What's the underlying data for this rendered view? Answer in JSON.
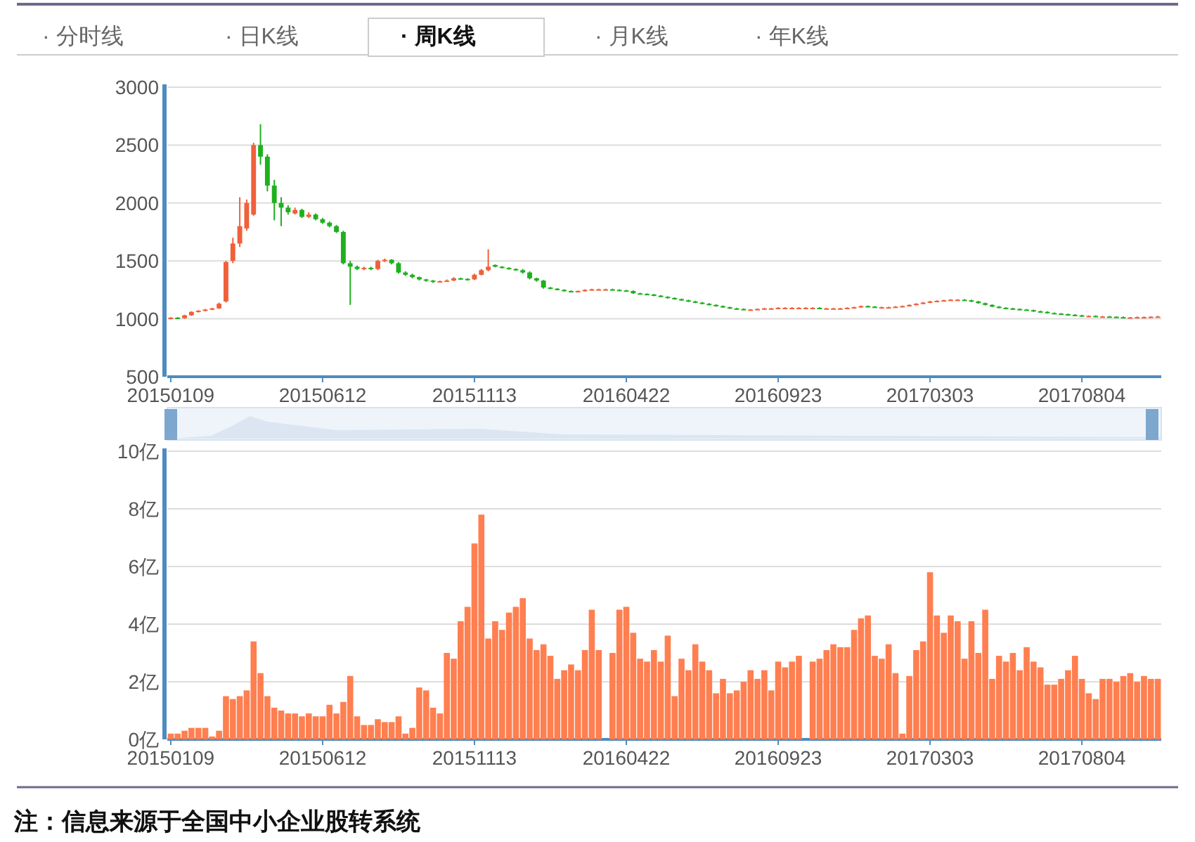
{
  "chart_data": [
    {
      "type": "other",
      "annotations": [
        "· 分时线",
        "· 日K线",
        "· 周K线",
        "· 月K线",
        "· 年K线"
      ]
    },
    {
      "type": "candlestick",
      "categories": [
        "20150109",
        null,
        null,
        null,
        null,
        null,
        null,
        null,
        null,
        null,
        null,
        null,
        null,
        null,
        null,
        null,
        null,
        null,
        null,
        null,
        null,
        null,
        "20150612",
        null,
        null,
        null,
        null,
        null,
        null,
        null,
        null,
        null,
        null,
        null,
        null,
        null,
        null,
        null,
        null,
        null,
        null,
        null,
        null,
        null,
        "20151113",
        null,
        null,
        null,
        null,
        null,
        null,
        null,
        null,
        null,
        null,
        null,
        null,
        null,
        null,
        null,
        null,
        null,
        null,
        null,
        null,
        null,
        "20160422",
        null,
        null,
        null,
        null,
        null,
        null,
        null,
        null,
        null,
        null,
        null,
        null,
        null,
        null,
        null,
        null,
        null,
        null,
        null,
        null,
        null,
        "20160923",
        null,
        null,
        null,
        null,
        null,
        null,
        null,
        null,
        null,
        null,
        null,
        null,
        null,
        null,
        null,
        null,
        null,
        null,
        null,
        null,
        null,
        "20170303",
        null,
        null,
        null,
        null,
        null,
        null,
        null,
        null,
        null,
        null,
        null,
        null,
        null,
        null,
        null,
        null,
        null,
        null,
        null,
        null,
        null,
        "20170804",
        null,
        null,
        null,
        null,
        null,
        null,
        null,
        null,
        null,
        null,
        null
      ],
      "ohlc": [
        [
          1000,
          1015,
          995,
          1010
        ],
        [
          1010,
          1015,
          1000,
          1005
        ],
        [
          1005,
          1035,
          1000,
          1030
        ],
        [
          1030,
          1065,
          1025,
          1060
        ],
        [
          1060,
          1075,
          1055,
          1070
        ],
        [
          1070,
          1085,
          1065,
          1080
        ],
        [
          1080,
          1095,
          1075,
          1090
        ],
        [
          1090,
          1140,
          1085,
          1130
        ],
        [
          1150,
          1500,
          1140,
          1490
        ],
        [
          1500,
          1700,
          1480,
          1650
        ],
        [
          1650,
          2050,
          1620,
          1800
        ],
        [
          1780,
          2030,
          1760,
          2000
        ],
        [
          1900,
          2520,
          1890,
          2500
        ],
        [
          2500,
          2680,
          2330,
          2400
        ],
        [
          2400,
          2420,
          2100,
          2150
        ],
        [
          2150,
          2200,
          1850,
          2000
        ],
        [
          2000,
          2050,
          1800,
          1960
        ],
        [
          1960,
          1980,
          1900,
          1920
        ],
        [
          1910,
          1960,
          1900,
          1940
        ],
        [
          1940,
          1950,
          1870,
          1880
        ],
        [
          1880,
          1920,
          1870,
          1900
        ],
        [
          1900,
          1910,
          1850,
          1860
        ],
        [
          1860,
          1870,
          1820,
          1830
        ],
        [
          1830,
          1840,
          1790,
          1800
        ],
        [
          1800,
          1810,
          1740,
          1750
        ],
        [
          1750,
          1760,
          1470,
          1480
        ],
        [
          1480,
          1500,
          1120,
          1450
        ],
        [
          1450,
          1460,
          1420,
          1430
        ],
        [
          1430,
          1450,
          1420,
          1440
        ],
        [
          1440,
          1450,
          1420,
          1430
        ],
        [
          1430,
          1510,
          1420,
          1500
        ],
        [
          1500,
          1520,
          1490,
          1510
        ],
        [
          1510,
          1515,
          1470,
          1480
        ],
        [
          1480,
          1490,
          1390,
          1400
        ],
        [
          1400,
          1410,
          1370,
          1380
        ],
        [
          1380,
          1390,
          1350,
          1360
        ],
        [
          1360,
          1365,
          1330,
          1340
        ],
        [
          1340,
          1345,
          1320,
          1330
        ],
        [
          1330,
          1335,
          1310,
          1320
        ],
        [
          1320,
          1330,
          1315,
          1325
        ],
        [
          1325,
          1340,
          1320,
          1330
        ],
        [
          1330,
          1360,
          1325,
          1350
        ],
        [
          1350,
          1355,
          1340,
          1345
        ],
        [
          1345,
          1350,
          1330,
          1340
        ],
        [
          1340,
          1390,
          1335,
          1380
        ],
        [
          1380,
          1430,
          1375,
          1420
        ],
        [
          1420,
          1600,
          1410,
          1450
        ],
        [
          1465,
          1470,
          1445,
          1450
        ],
        [
          1450,
          1455,
          1435,
          1440
        ],
        [
          1440,
          1445,
          1425,
          1430
        ],
        [
          1430,
          1435,
          1415,
          1420
        ],
        [
          1420,
          1430,
          1390,
          1400
        ],
        [
          1400,
          1410,
          1340,
          1350
        ],
        [
          1350,
          1355,
          1320,
          1330
        ],
        [
          1330,
          1335,
          1260,
          1270
        ],
        [
          1270,
          1275,
          1255,
          1260
        ],
        [
          1260,
          1265,
          1245,
          1250
        ],
        [
          1250,
          1255,
          1235,
          1240
        ],
        [
          1240,
          1245,
          1230,
          1235
        ],
        [
          1235,
          1245,
          1230,
          1240
        ],
        [
          1240,
          1255,
          1235,
          1250
        ],
        [
          1250,
          1260,
          1245,
          1255
        ],
        [
          1255,
          1260,
          1250,
          1255
        ],
        [
          1255,
          1260,
          1250,
          1255
        ],
        [
          1255,
          1260,
          1245,
          1250
        ],
        [
          1250,
          1255,
          1240,
          1245
        ],
        [
          1245,
          1250,
          1235,
          1240
        ],
        [
          1240,
          1245,
          1215,
          1220
        ],
        [
          1220,
          1225,
          1210,
          1215
        ],
        [
          1215,
          1220,
          1205,
          1210
        ],
        [
          1210,
          1215,
          1195,
          1200
        ],
        [
          1200,
          1205,
          1185,
          1190
        ],
        [
          1190,
          1195,
          1175,
          1180
        ],
        [
          1180,
          1185,
          1165,
          1170
        ],
        [
          1170,
          1175,
          1155,
          1160
        ],
        [
          1160,
          1165,
          1145,
          1150
        ],
        [
          1150,
          1155,
          1135,
          1140
        ],
        [
          1140,
          1145,
          1125,
          1130
        ],
        [
          1130,
          1135,
          1115,
          1120
        ],
        [
          1120,
          1125,
          1105,
          1110
        ],
        [
          1110,
          1115,
          1095,
          1100
        ],
        [
          1100,
          1105,
          1085,
          1090
        ],
        [
          1090,
          1095,
          1080,
          1085
        ],
        [
          1085,
          1090,
          1075,
          1080
        ],
        [
          1080,
          1085,
          1075,
          1080
        ],
        [
          1080,
          1090,
          1075,
          1085
        ],
        [
          1085,
          1095,
          1080,
          1090
        ],
        [
          1090,
          1095,
          1085,
          1090
        ],
        [
          1090,
          1100,
          1085,
          1095
        ],
        [
          1095,
          1100,
          1090,
          1095
        ],
        [
          1095,
          1100,
          1090,
          1095
        ],
        [
          1095,
          1100,
          1090,
          1095
        ],
        [
          1095,
          1100,
          1090,
          1095
        ],
        [
          1095,
          1100,
          1090,
          1095
        ],
        [
          1095,
          1100,
          1085,
          1090
        ],
        [
          1090,
          1095,
          1085,
          1090
        ],
        [
          1090,
          1095,
          1085,
          1090
        ],
        [
          1090,
          1095,
          1085,
          1090
        ],
        [
          1090,
          1100,
          1085,
          1095
        ],
        [
          1095,
          1105,
          1090,
          1100
        ],
        [
          1100,
          1115,
          1095,
          1110
        ],
        [
          1110,
          1115,
          1100,
          1105
        ],
        [
          1105,
          1110,
          1095,
          1100
        ],
        [
          1100,
          1105,
          1095,
          1100
        ],
        [
          1100,
          1105,
          1095,
          1100
        ],
        [
          1100,
          1110,
          1095,
          1105
        ],
        [
          1105,
          1115,
          1100,
          1110
        ],
        [
          1110,
          1125,
          1105,
          1120
        ],
        [
          1120,
          1135,
          1115,
          1130
        ],
        [
          1130,
          1145,
          1125,
          1140
        ],
        [
          1140,
          1155,
          1135,
          1150
        ],
        [
          1150,
          1160,
          1145,
          1155
        ],
        [
          1155,
          1165,
          1150,
          1160
        ],
        [
          1160,
          1170,
          1155,
          1165
        ],
        [
          1165,
          1170,
          1160,
          1165
        ],
        [
          1165,
          1170,
          1155,
          1160
        ],
        [
          1160,
          1165,
          1145,
          1150
        ],
        [
          1150,
          1155,
          1130,
          1135
        ],
        [
          1135,
          1140,
          1115,
          1120
        ],
        [
          1120,
          1125,
          1100,
          1105
        ],
        [
          1105,
          1110,
          1090,
          1095
        ],
        [
          1095,
          1100,
          1085,
          1090
        ],
        [
          1090,
          1095,
          1080,
          1085
        ],
        [
          1085,
          1090,
          1075,
          1080
        ],
        [
          1080,
          1085,
          1070,
          1075
        ],
        [
          1075,
          1080,
          1060,
          1065
        ],
        [
          1065,
          1070,
          1055,
          1060
        ],
        [
          1060,
          1065,
          1045,
          1050
        ],
        [
          1050,
          1055,
          1040,
          1045
        ],
        [
          1045,
          1050,
          1035,
          1040
        ],
        [
          1040,
          1045,
          1030,
          1035
        ],
        [
          1035,
          1040,
          1025,
          1030
        ],
        [
          1030,
          1035,
          1020,
          1025
        ],
        [
          1025,
          1030,
          1020,
          1025
        ],
        [
          1025,
          1030,
          1015,
          1020
        ],
        [
          1020,
          1025,
          1015,
          1020
        ],
        [
          1020,
          1025,
          1013,
          1018
        ],
        [
          1018,
          1022,
          1010,
          1015
        ],
        [
          1015,
          1020,
          1008,
          1012
        ],
        [
          1012,
          1016,
          1008,
          1012
        ],
        [
          1012,
          1020,
          1008,
          1015
        ],
        [
          1015,
          1020,
          1010,
          1015
        ],
        [
          1015,
          1022,
          1010,
          1018
        ],
        [
          1018,
          1025,
          1012,
          1020
        ]
      ],
      "ylim": [
        500,
        3000
      ],
      "yticks": [
        500,
        1000,
        1500,
        2000,
        2500,
        3000
      ],
      "grid": "y"
    },
    {
      "type": "bar",
      "categories": [
        "20150109",
        null,
        null,
        null,
        null,
        null,
        null,
        null,
        null,
        null,
        null,
        null,
        null,
        null,
        null,
        null,
        null,
        null,
        null,
        null,
        null,
        null,
        "20150612",
        null,
        null,
        null,
        null,
        null,
        null,
        null,
        null,
        null,
        null,
        null,
        null,
        null,
        null,
        null,
        null,
        null,
        null,
        null,
        null,
        null,
        "20151113",
        null,
        null,
        null,
        null,
        null,
        null,
        null,
        null,
        null,
        null,
        null,
        null,
        null,
        null,
        null,
        null,
        null,
        null,
        null,
        null,
        null,
        "20160422",
        null,
        null,
        null,
        null,
        null,
        null,
        null,
        null,
        null,
        null,
        null,
        null,
        null,
        null,
        null,
        null,
        null,
        null,
        null,
        null,
        null,
        "20160923",
        null,
        null,
        null,
        null,
        null,
        null,
        null,
        null,
        null,
        null,
        null,
        null,
        null,
        null,
        null,
        null,
        null,
        null,
        null,
        null,
        null,
        "20170303",
        null,
        null,
        null,
        null,
        null,
        null,
        null,
        null,
        null,
        null,
        null,
        null,
        null,
        null,
        null,
        null,
        null,
        null,
        null,
        null,
        null,
        "20170804",
        null,
        null,
        null,
        null,
        null,
        null,
        null,
        null,
        null,
        null,
        null
      ],
      "values": [
        0.2,
        0.2,
        0.3,
        0.4,
        0.4,
        0.4,
        0.1,
        0.3,
        1.5,
        1.4,
        1.5,
        1.7,
        3.4,
        2.3,
        1.5,
        1.1,
        1.0,
        0.9,
        0.9,
        0.8,
        0.9,
        0.8,
        0.8,
        1.2,
        0.9,
        1.3,
        2.2,
        0.8,
        0.5,
        0.5,
        0.7,
        0.6,
        0.6,
        0.8,
        0.2,
        0.4,
        1.8,
        1.7,
        1.1,
        0.9,
        3.0,
        2.8,
        4.1,
        4.6,
        6.8,
        7.8,
        3.5,
        4.1,
        3.8,
        4.4,
        4.6,
        4.9,
        3.5,
        3.1,
        3.3,
        2.9,
        2.1,
        2.4,
        2.6,
        2.4,
        3.1,
        4.5,
        3.1,
        0,
        3.0,
        4.5,
        4.6,
        3.7,
        2.8,
        2.7,
        3.1,
        2.7,
        3.6,
        1.5,
        2.8,
        2.4,
        3.3,
        2.7,
        2.4,
        1.6,
        2.1,
        1.6,
        1.7,
        2.0,
        2.4,
        2.1,
        2.4,
        1.7,
        2.7,
        2.5,
        2.7,
        2.9,
        0,
        2.7,
        2.8,
        3.1,
        3.3,
        3.2,
        3.2,
        3.8,
        4.2,
        4.3,
        2.9,
        2.8,
        3.3,
        2.3,
        0.2,
        2.2,
        3.1,
        3.4,
        5.8,
        4.3,
        3.7,
        4.3,
        4.1,
        2.8,
        4.1,
        3.0,
        4.5,
        2.1,
        2.9,
        2.7,
        3.0,
        2.4,
        3.2,
        2.7,
        2.5,
        1.9,
        1.9,
        2.1,
        2.4,
        2.9,
        2.1,
        1.6,
        1.4,
        2.1,
        2.1,
        2.0,
        2.2,
        2.3,
        2.0,
        2.2,
        2.1,
        2.1
      ],
      "color": "#ff7f50",
      "ylim": [
        0,
        10
      ],
      "yticks": [
        {
          "value": 0,
          "label": "0亿"
        },
        {
          "value": 2,
          "label": "2亿"
        },
        {
          "value": 4,
          "label": "4亿"
        },
        {
          "value": 6,
          "label": "6亿"
        },
        {
          "value": 8,
          "label": "8亿"
        },
        {
          "value": 10,
          "label": "10亿"
        }
      ],
      "grid": "y",
      "annotations": [
        "注：信息来源于全国中小企业股转系统"
      ]
    }
  ]
}
